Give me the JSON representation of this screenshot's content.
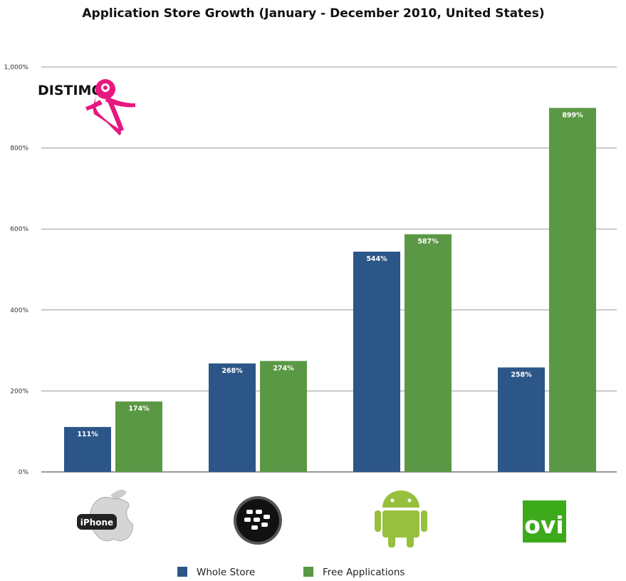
{
  "chart_data": {
    "type": "bar",
    "title": "Application Store Growth (January - December 2010, United States)",
    "xlabel": "",
    "ylabel": "",
    "ylim": [
      0,
      1000
    ],
    "yticks": [
      0,
      200,
      400,
      600,
      800,
      1000
    ],
    "ytick_labels": [
      "0%",
      "200%",
      "400%",
      "600%",
      "800%",
      "1,000%"
    ],
    "grid": true,
    "legend_placement": "bottom",
    "categories": [
      "apple-iphone-logo",
      "blackberry-logo",
      "android-logo",
      "ovi-logo"
    ],
    "series": [
      {
        "name": "Whole Store",
        "color": "#2d5688",
        "values": [
          111,
          268,
          544,
          258
        ],
        "labels": [
          "111%",
          "268%",
          "544%",
          "258%"
        ]
      },
      {
        "name": "Free Applications",
        "color": "#5b9845",
        "values": [
          174,
          274,
          587,
          899
        ],
        "labels": [
          "174%",
          "274%",
          "587%",
          "899%"
        ]
      }
    ]
  },
  "logos": {
    "iphone_text": "iPhone",
    "ovi_text": "ovi",
    "distimo_text": "DISTIMO",
    "distimo_color": "#e8177f",
    "android_color": "#97c03e",
    "ovi_color": "#3daa1b"
  }
}
